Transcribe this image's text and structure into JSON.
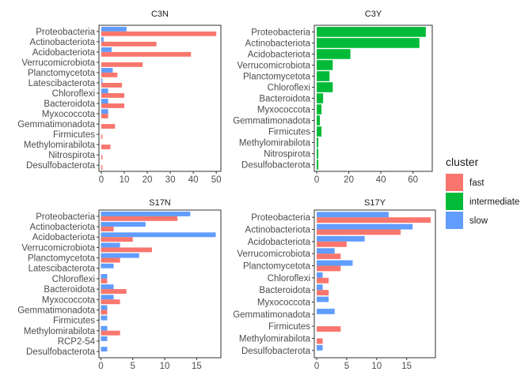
{
  "colors": {
    "fast": "#F8766D",
    "intermediate": "#00BA38",
    "slow": "#619CFF",
    "axis_text": "#4d4d4d",
    "title_text": "#1a1a1a"
  },
  "legend": {
    "title": "cluster",
    "items": [
      {
        "key": "fast",
        "label": "fast"
      },
      {
        "key": "intermediate",
        "label": "intermediate"
      },
      {
        "key": "slow",
        "label": "slow"
      }
    ],
    "placement": "right"
  },
  "chart_data": [
    {
      "type": "bar",
      "orientation": "horizontal",
      "title": "C3N",
      "categories": [
        "Proteobacteria",
        "Actinobacteriota",
        "Acidobacteriota",
        "Verrucomicrobiota",
        "Planctomycetota",
        "Latescibacterota",
        "Chloroflexi",
        "Bacteroidota",
        "Myxococcota",
        "Gemmatimonadota",
        "Firmicutes",
        "Methylomirabilota",
        "Nitrospirota",
        "Desulfobacterota"
      ],
      "series": [
        {
          "name": "slow",
          "values": [
            11,
            1,
            4.5,
            0,
            5,
            0.5,
            3,
            3,
            3,
            0,
            0,
            0,
            0,
            0
          ]
        },
        {
          "name": "fast",
          "values": [
            50,
            24,
            39,
            18,
            7,
            9,
            10,
            10,
            3,
            6,
            0.5,
            4,
            0.5,
            0.5
          ]
        }
      ],
      "xlim": [
        -1,
        52
      ],
      "xticks": [
        0,
        10,
        20,
        30,
        40,
        50
      ],
      "grid": false
    },
    {
      "type": "bar",
      "orientation": "horizontal",
      "title": "C3Y",
      "categories": [
        "Proteobacteria",
        "Actinobacteriota",
        "Acidobacteriota",
        "Verrucomicrobiota",
        "Planctomycetota",
        "Chloroflexi",
        "Bacteroidota",
        "Myxococcota",
        "Gemmatimonadota",
        "Firmicutes",
        "Methylomirabilota",
        "Nitrospirota",
        "Desulfobacterota"
      ],
      "series": [
        {
          "name": "intermediate",
          "values": [
            68,
            64,
            21,
            10,
            8,
            10,
            4,
            3,
            2,
            3,
            1,
            1,
            1
          ]
        }
      ],
      "xlim": [
        -1.5,
        72
      ],
      "xticks": [
        0,
        20,
        40,
        60
      ],
      "grid": false
    },
    {
      "type": "bar",
      "orientation": "horizontal",
      "title": "S17N",
      "categories": [
        "Proteobacteria",
        "Actinobacteriota",
        "Acidobacteriota",
        "Verrucomicrobiota",
        "Planctomycetota",
        "Latescibacterota",
        "Chloroflexi",
        "Bacteroidota",
        "Myxococcota",
        "Gemmatimonadota",
        "Firmicutes",
        "Methylomirabilota",
        "RCP2-54",
        "Desulfobacterota"
      ],
      "series": [
        {
          "name": "slow",
          "values": [
            14,
            7,
            18,
            3,
            6,
            2,
            1,
            2,
            2,
            1,
            1,
            1,
            1,
            1
          ]
        },
        {
          "name": "fast",
          "values": [
            12,
            2,
            5,
            8,
            3,
            0,
            1,
            4,
            3,
            1,
            0,
            3,
            0,
            0
          ]
        }
      ],
      "xlim": [
        -0.3,
        18.8
      ],
      "xticks": [
        0,
        5,
        10,
        15
      ],
      "grid": false
    },
    {
      "type": "bar",
      "orientation": "horizontal",
      "title": "S17Y",
      "categories": [
        "Proteobacteria",
        "Actinobacteriota",
        "Acidobacteriota",
        "Verrucomicrobiota",
        "Planctomycetota",
        "Chloroflexi",
        "Bacteroidota",
        "Myxococcota",
        "Gemmatimonadota",
        "Firmicutes",
        "Methylomirabilota",
        "Desulfobacterota"
      ],
      "series": [
        {
          "name": "slow",
          "values": [
            12,
            16,
            8,
            3,
            6,
            1,
            1,
            2,
            3,
            0,
            0,
            1
          ]
        },
        {
          "name": "fast",
          "values": [
            19,
            14,
            5,
            4,
            4,
            2,
            2,
            0,
            0,
            4,
            1,
            0
          ]
        }
      ],
      "xlim": [
        -0.4,
        19.8
      ],
      "xticks": [
        0,
        5,
        10,
        15
      ],
      "grid": false
    }
  ]
}
